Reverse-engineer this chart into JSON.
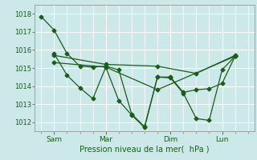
{
  "background_color": "#cce8e8",
  "grid_color": "#ffffff",
  "line_color": "#1a5c1a",
  "xlabel": "Pression niveau de la mer(  hPa )",
  "ylim": [
    1011.5,
    1018.5
  ],
  "yticks": [
    1012,
    1013,
    1014,
    1015,
    1016,
    1017,
    1018
  ],
  "xtick_labels": [
    "Sam",
    "Mar",
    "Dim",
    "Lun"
  ],
  "xtick_positions": [
    2,
    6,
    11,
    15
  ],
  "xlim": [
    0.5,
    17.5
  ],
  "line1_x": [
    1,
    2,
    3,
    4,
    5,
    6,
    7,
    8,
    9,
    10,
    11,
    12,
    13,
    14,
    15,
    16
  ],
  "line1_y": [
    1017.85,
    1017.1,
    1015.8,
    1015.1,
    1015.05,
    1015.1,
    1014.9,
    1012.45,
    1011.75,
    1014.5,
    1014.5,
    1013.65,
    1013.8,
    1013.85,
    1014.15,
    1015.65
  ],
  "line2_x": [
    2,
    3,
    4,
    5,
    6,
    7,
    8,
    9,
    10,
    11,
    12,
    13,
    14,
    15,
    16
  ],
  "line2_y": [
    1015.8,
    1014.6,
    1013.9,
    1013.3,
    1015.05,
    1013.2,
    1012.4,
    1011.7,
    1014.5,
    1014.45,
    1013.6,
    1012.2,
    1012.1,
    1014.9,
    1015.65
  ],
  "line3_x": [
    2,
    6,
    10,
    13,
    16
  ],
  "line3_y": [
    1015.7,
    1015.2,
    1015.1,
    1014.7,
    1015.7
  ],
  "line4_x": [
    2,
    6,
    10,
    16
  ],
  "line4_y": [
    1015.3,
    1015.05,
    1013.8,
    1015.65
  ],
  "minor_xticks": [
    1,
    2,
    3,
    4,
    5,
    6,
    7,
    8,
    9,
    10,
    11,
    12,
    13,
    14,
    15,
    16,
    17
  ]
}
